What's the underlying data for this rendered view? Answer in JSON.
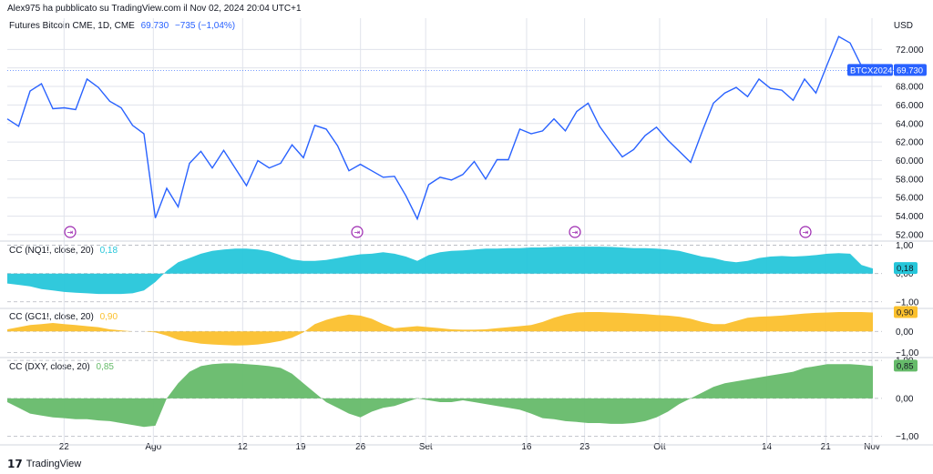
{
  "header": {
    "published": "Alex975 ha pubblicato su TradingView.com il Nov 02, 2024 20:04 UTC+1",
    "symbol": "Futures Bitcoin CME, 1D, CME",
    "symbol_value": "69.730",
    "symbol_change": "−735 (−1,04%)",
    "currency": "USD",
    "price_tag_symbol": "BTCX2024",
    "price_tag_value": "69.730"
  },
  "indicators": [
    {
      "label": "CC (NQ1!, close, 20)",
      "value": "0,18",
      "color": "#26c6da"
    },
    {
      "label": "CC (GC1!, close, 20)",
      "value": "0,90",
      "color": "#fbc02d"
    },
    {
      "label": "CC (DXY, close, 20)",
      "value": "0,85",
      "color": "#66bb6a"
    }
  ],
  "footer": {
    "brand": "TradingView"
  },
  "colors": {
    "price_line": "#2962ff",
    "grid": "#e0e3eb",
    "cyan": "#26c6da",
    "yellow": "#fbc02d",
    "green": "#66bb6a"
  },
  "chart_data": [
    {
      "type": "line",
      "title": "Futures Bitcoin CME, 1D, CME",
      "ylabel": "USD",
      "ylim": [
        51600,
        73800
      ],
      "yticks": [
        "72.000",
        "70.000",
        "68.000",
        "66.000",
        "64.000",
        "62.000",
        "60.000",
        "58.000",
        "56.000",
        "54.000",
        "52.000"
      ],
      "x_ticks": [
        "22",
        "Ago",
        "12",
        "19",
        "26",
        "Set",
        "16",
        "23",
        "Ott",
        "14",
        "21",
        "Nov"
      ],
      "series": [
        {
          "values": [
            64500,
            63700,
            67500,
            68300,
            65600,
            65700,
            65500,
            68800,
            67900,
            66400,
            65700,
            63800,
            62900,
            53800,
            57000,
            55000,
            59700,
            61000,
            59200,
            61100,
            59200,
            57300,
            60000,
            59200,
            59700,
            61700,
            60300,
            63800,
            63400,
            61600,
            58900,
            59600,
            58900,
            58200,
            58300,
            56200,
            53700,
            57400,
            58200,
            57900,
            58500,
            59900,
            58000,
            60100,
            60100,
            63400,
            62900,
            63200,
            64500,
            63200,
            65300,
            66200,
            63700,
            62000,
            60400,
            61200,
            62700,
            63600,
            62200,
            61000,
            59800,
            63100,
            66200,
            67300,
            67900,
            66900,
            68800,
            67800,
            67600,
            66500,
            68800,
            67300,
            70400,
            73400,
            72700,
            70200,
            69730
          ]
        }
      ],
      "markers": 4
    },
    {
      "type": "area",
      "title": "CC (NQ1!, close, 20)",
      "ylim": [
        -1.2,
        1.05
      ],
      "yticks": [
        "1,00",
        "0,00",
        "-1,00"
      ],
      "series": [
        {
          "name": "CC (NQ1!, close, 20)",
          "values": [
            -0.35,
            -0.4,
            -0.45,
            -0.55,
            -0.6,
            -0.65,
            -0.68,
            -0.7,
            -0.72,
            -0.72,
            -0.72,
            -0.7,
            -0.6,
            -0.3,
            0.1,
            0.4,
            0.55,
            0.7,
            0.8,
            0.85,
            0.88,
            0.88,
            0.85,
            0.78,
            0.65,
            0.5,
            0.45,
            0.45,
            0.48,
            0.55,
            0.62,
            0.68,
            0.7,
            0.75,
            0.7,
            0.6,
            0.45,
            0.65,
            0.75,
            0.8,
            0.82,
            0.85,
            0.88,
            0.88,
            0.9,
            0.9,
            0.92,
            0.92,
            0.94,
            0.95,
            0.95,
            0.95,
            0.95,
            0.94,
            0.92,
            0.9,
            0.9,
            0.88,
            0.85,
            0.8,
            0.7,
            0.6,
            0.55,
            0.45,
            0.4,
            0.45,
            0.55,
            0.6,
            0.62,
            0.6,
            0.62,
            0.65,
            0.7,
            0.72,
            0.7,
            0.3,
            0.18
          ]
        }
      ]
    },
    {
      "type": "area",
      "title": "CC (GC1!, close, 20)",
      "ylim": [
        -1.2,
        1.05
      ],
      "yticks": [
        "0,00",
        "-1,00"
      ],
      "series": [
        {
          "name": "CC (GC1!, close, 20)",
          "values": [
            0.1,
            0.2,
            0.3,
            0.35,
            0.4,
            0.35,
            0.3,
            0.25,
            0.2,
            0.1,
            0.05,
            0.0,
            0.0,
            -0.05,
            -0.2,
            -0.4,
            -0.5,
            -0.58,
            -0.62,
            -0.65,
            -0.67,
            -0.66,
            -0.62,
            -0.55,
            -0.45,
            -0.3,
            -0.05,
            0.35,
            0.55,
            0.7,
            0.8,
            0.75,
            0.6,
            0.35,
            0.15,
            0.2,
            0.25,
            0.2,
            0.15,
            0.1,
            0.08,
            0.08,
            0.1,
            0.15,
            0.2,
            0.25,
            0.3,
            0.45,
            0.65,
            0.8,
            0.9,
            0.92,
            0.92,
            0.9,
            0.88,
            0.85,
            0.82,
            0.78,
            0.75,
            0.7,
            0.6,
            0.45,
            0.35,
            0.35,
            0.5,
            0.65,
            0.7,
            0.72,
            0.75,
            0.8,
            0.85,
            0.88,
            0.9,
            0.92,
            0.92,
            0.92,
            0.9
          ]
        }
      ]
    },
    {
      "type": "area",
      "title": "CC (DXY, close, 20)",
      "ylim": [
        -1.2,
        1.05
      ],
      "yticks": [
        "1,00",
        "0,00",
        "-1,00"
      ],
      "series": [
        {
          "name": "CC (DXY, close, 20)",
          "values": [
            -0.1,
            -0.25,
            -0.4,
            -0.45,
            -0.5,
            -0.52,
            -0.55,
            -0.55,
            -0.58,
            -0.6,
            -0.65,
            -0.7,
            -0.75,
            -0.72,
            0.0,
            0.4,
            0.7,
            0.85,
            0.9,
            0.92,
            0.92,
            0.9,
            0.88,
            0.85,
            0.8,
            0.65,
            0.4,
            0.15,
            -0.1,
            -0.25,
            -0.4,
            -0.5,
            -0.35,
            -0.25,
            -0.2,
            -0.1,
            0.0,
            -0.05,
            -0.1,
            -0.1,
            -0.05,
            -0.1,
            -0.15,
            -0.2,
            -0.25,
            -0.3,
            -0.4,
            -0.52,
            -0.55,
            -0.6,
            -0.62,
            -0.65,
            -0.65,
            -0.67,
            -0.67,
            -0.65,
            -0.6,
            -0.5,
            -0.35,
            -0.15,
            0.0,
            0.15,
            0.3,
            0.4,
            0.45,
            0.5,
            0.55,
            0.6,
            0.65,
            0.7,
            0.8,
            0.85,
            0.9,
            0.9,
            0.9,
            0.88,
            0.85
          ]
        }
      ]
    }
  ]
}
